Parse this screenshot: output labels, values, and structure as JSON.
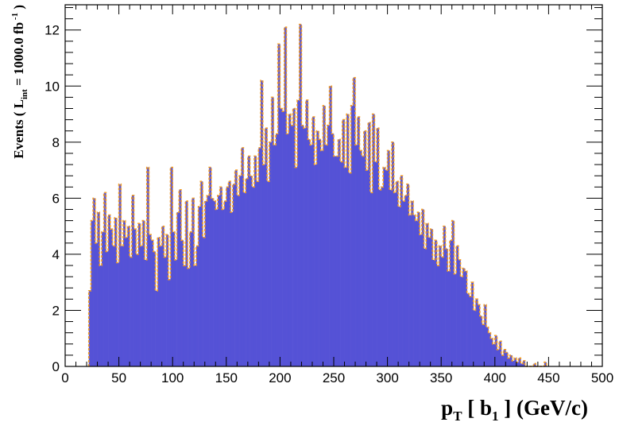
{
  "chart_data": {
    "type": "bar",
    "title": "",
    "xlabel": {
      "p": "p",
      "p_sub": "T",
      "open": " [ b",
      "b_sub": "1",
      "close": " ] (GeV/c)"
    },
    "ylabel": {
      "prefix": "Events  ( L",
      "sub": "int",
      "mid": " = 1000.0 fb",
      "sup": " -1",
      "suffix": " )"
    },
    "xlim": [
      0,
      500
    ],
    "ylim": [
      0,
      12.9
    ],
    "x_ticks": [
      "0",
      "50",
      "100",
      "150",
      "200",
      "250",
      "300",
      "350",
      "400",
      "450",
      "500"
    ],
    "y_ticks": [
      "0",
      "2",
      "4",
      "6",
      "8",
      "10",
      "12"
    ],
    "grid": false,
    "bin_width": 2,
    "x_start": 22,
    "fill_color": "#5552d6",
    "edge_color": "#f39c21",
    "values": [
      2.7,
      5.2,
      6.0,
      4.4,
      5.5,
      3.6,
      4.8,
      6.2,
      4.1,
      5.4,
      4.9,
      4.3,
      5.3,
      3.7,
      6.5,
      4.3,
      5.2,
      4.6,
      5.0,
      3.9,
      6.1,
      4.9,
      4.0,
      5.1,
      4.3,
      5.2,
      3.8,
      7.1,
      4.7,
      4.5,
      4.1,
      2.7,
      4.6,
      4.3,
      5.0,
      3.9,
      4.7,
      3.1,
      7.1,
      4.8,
      3.8,
      5.5,
      6.3,
      4.5,
      3.6,
      5.9,
      3.5,
      4.8,
      6.0,
      3.6,
      4.3,
      5.7,
      6.6,
      4.6,
      5.9,
      6.1,
      7.1,
      6.0,
      5.9,
      5.6,
      6.1,
      6.4,
      5.6,
      5.9,
      6.4,
      6.6,
      5.5,
      6.5,
      7.0,
      6.1,
      6.8,
      7.8,
      6.2,
      6.7,
      7.5,
      6.8,
      6.4,
      7.5,
      6.6,
      7.8,
      10.2,
      7.2,
      8.5,
      6.6,
      8.0,
      9.6,
      7.9,
      8.3,
      11.5,
      9.2,
      9.1,
      12.1,
      8.3,
      9.0,
      8.6,
      9.2,
      7.1,
      9.5,
      12.2,
      8.6,
      8.5,
      9.5,
      8.1,
      7.9,
      8.9,
      7.2,
      8.4,
      8.1,
      7.7,
      9.3,
      7.9,
      8.6,
      10.0,
      8.3,
      7.5,
      7.5,
      8.1,
      7.3,
      8.8,
      7.1,
      9.0,
      6.9,
      9.3,
      10.3,
      7.9,
      8.9,
      7.7,
      7.5,
      8.4,
      7.0,
      8.7,
      6.2,
      9.0,
      7.3,
      8.5,
      6.3,
      6.4,
      7.1,
      7.0,
      7.7,
      6.3,
      8.0,
      6.2,
      6.6,
      5.7,
      6.8,
      5.9,
      6.1,
      6.5,
      5.4,
      5.9,
      5.4,
      5.2,
      5.5,
      4.7,
      5.6,
      4.2,
      5.1,
      4.6,
      4.9,
      3.8,
      4.5,
      3.6,
      4.3,
      3.9,
      5.0,
      4.2,
      3.4,
      4.5,
      5.2,
      3.3,
      4.3,
      3.8,
      3.2,
      3.5,
      3.4,
      2.6,
      2.5,
      3.0,
      2.0,
      2.4,
      2.2,
      1.8,
      1.5,
      2.2,
      1.4,
      1.2,
      1.0,
      0.8,
      1.1,
      0.6,
      0.9,
      0.4,
      0.6,
      0.5,
      0.3,
      0.4,
      0.2,
      0.3,
      0.15,
      0.3,
      0.1,
      0.2,
      0.0,
      0.0,
      0.0,
      0.0,
      0.1,
      0.0,
      0.0,
      0.0,
      0.0,
      0.15
    ]
  }
}
